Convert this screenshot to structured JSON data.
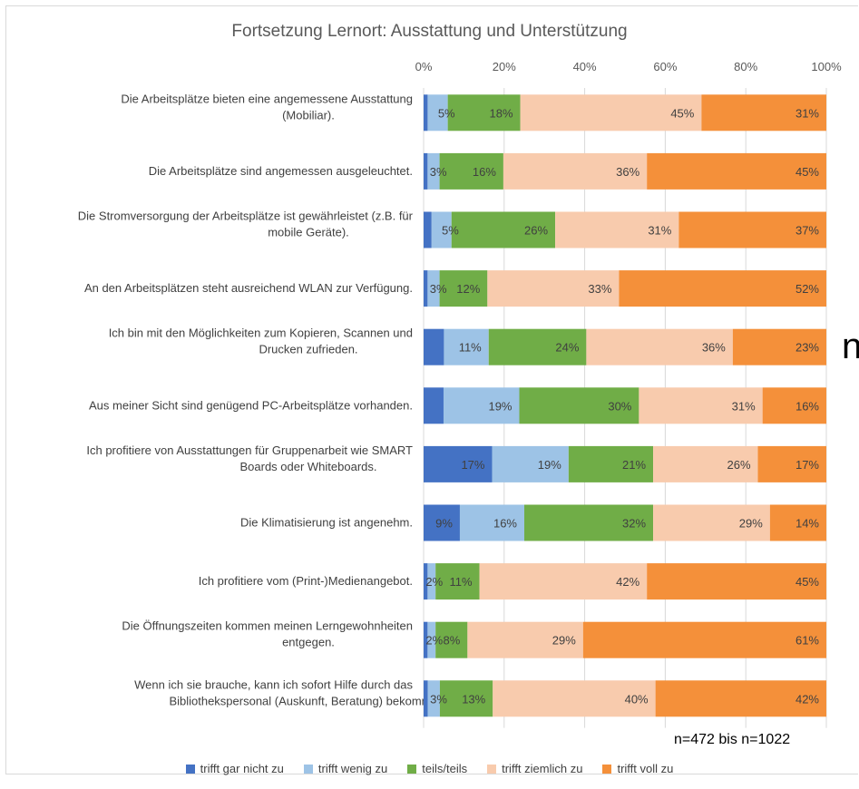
{
  "chart_data": {
    "type": "bar",
    "orientation": "horizontal",
    "stacked": "percent",
    "title": "Fortsetzung Lernort: Ausstattung und Unterstützung",
    "x_ticks": [
      "0%",
      "20%",
      "40%",
      "60%",
      "80%",
      "100%"
    ],
    "xlim": [
      0,
      100
    ],
    "axis_position": "top",
    "legend_position": "bottom",
    "grid": true,
    "categories": [
      {
        "lines": [
          "Die Arbeitsplätze bieten eine angemessene Ausstattung",
          "(Mobiliar)."
        ]
      },
      {
        "lines": [
          "Die Arbeitsplätze sind angemessen ausgeleuchtet."
        ]
      },
      {
        "lines": [
          "Die Stromversorgung der Arbeitsplätze ist gewährleistet (z.B. für",
          "mobile Geräte)."
        ]
      },
      {
        "lines": [
          "An den Arbeitsplätzen steht ausreichend WLAN zur Verfügung."
        ]
      },
      {
        "lines": [
          "Ich bin mit den Möglichkeiten zum Kopieren, Scannen und",
          "Drucken zufrieden."
        ]
      },
      {
        "lines": [
          "Aus meiner Sicht sind genügend PC-Arbeitsplätze vorhanden."
        ]
      },
      {
        "lines": [
          "Ich profitiere von Ausstattungen für Gruppenarbeit wie SMART",
          "Boards oder Whiteboards."
        ]
      },
      {
        "lines": [
          "Die Klimatisierung ist angenehm."
        ]
      },
      {
        "lines": [
          "Ich profitiere vom (Print-)Medienangebot."
        ]
      },
      {
        "lines": [
          "Die Öffnungszeiten kommen meinen Lerngewohnheiten",
          "entgegen."
        ]
      },
      {
        "lines": [
          "Wenn ich sie brauche, kann ich sofort Hilfe durch das",
          "Bibliothekspersonal (Auskunft, Beratung) bekommen."
        ]
      }
    ],
    "series": [
      {
        "name": "trifft gar nicht zu",
        "color": "#4472c4",
        "values": [
          1,
          1,
          2,
          1,
          5,
          5,
          17,
          9,
          1,
          1,
          1
        ],
        "labels": [
          "",
          "",
          "",
          "",
          "",
          "",
          "17%",
          "9%",
          "",
          "",
          ""
        ]
      },
      {
        "name": "trifft wenig zu",
        "color": "#9dc3e6",
        "values": [
          5,
          3,
          5,
          3,
          11,
          19,
          19,
          16,
          2,
          2,
          3
        ],
        "labels": [
          "5%",
          "3%",
          "5%",
          "3%",
          "11%",
          "19%",
          "19%",
          "16%",
          "2%",
          "2%",
          "3%"
        ]
      },
      {
        "name": "teils/teils",
        "color": "#70ad47",
        "values": [
          18,
          16,
          26,
          12,
          24,
          30,
          21,
          32,
          11,
          8,
          13
        ],
        "labels": [
          "18%",
          "16%",
          "26%",
          "12%",
          "24%",
          "30%",
          "21%",
          "32%",
          "11%",
          "8%",
          "13%"
        ]
      },
      {
        "name": "trifft ziemlich zu",
        "color": "#f8cbad",
        "values": [
          45,
          36,
          31,
          33,
          36,
          31,
          26,
          29,
          42,
          29,
          40
        ],
        "labels": [
          "45%",
          "36%",
          "31%",
          "33%",
          "36%",
          "31%",
          "26%",
          "29%",
          "42%",
          "29%",
          "40%"
        ]
      },
      {
        "name": "trifft voll zu",
        "color": "#f4903a",
        "values": [
          31,
          45,
          37,
          52,
          23,
          16,
          17,
          14,
          45,
          61,
          42
        ],
        "labels": [
          "31%",
          "45%",
          "37%",
          "52%",
          "23%",
          "16%",
          "17%",
          "14%",
          "45%",
          "61%",
          "42%"
        ]
      }
    ],
    "annotation": "n=472 bis n=1022"
  },
  "side_glyph": "n"
}
